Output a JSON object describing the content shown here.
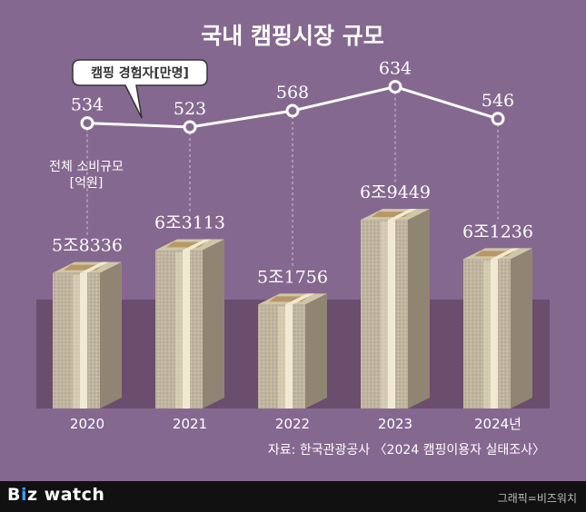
{
  "title": "국내 캠핑시장 규모",
  "bubble_label": "캠핑 경험자[만명]",
  "spending_label_line1": "전체 소비규모",
  "spending_label_line2": "[억원]",
  "source": "자료: 한국관광공사 〈2024 캠핑이용자 실태조사〉",
  "brand": {
    "b": "B",
    "i": "i",
    "z": "z",
    "rest": " watch"
  },
  "credit": "그래픽=비즈워치",
  "colors": {
    "background": "#856890",
    "band": "#6b4d6e",
    "line": "#ffffff",
    "footer": "#111111"
  },
  "chart_data": {
    "type": "bar",
    "categories": [
      "2020",
      "2021",
      "2022",
      "2023",
      "2024년"
    ],
    "series": [
      {
        "name": "전체 소비규모 [억원]",
        "values": [
          58336,
          63113,
          51756,
          69449,
          61236
        ],
        "labels": [
          "5조8336",
          "6조3113",
          "5조1756",
          "6조9449",
          "6조1236"
        ]
      },
      {
        "name": "캠핑 경험자[만명]",
        "type": "line",
        "values": [
          534,
          523,
          568,
          634,
          546
        ],
        "labels": [
          "534",
          "523",
          "568",
          "634",
          "546"
        ]
      }
    ]
  }
}
